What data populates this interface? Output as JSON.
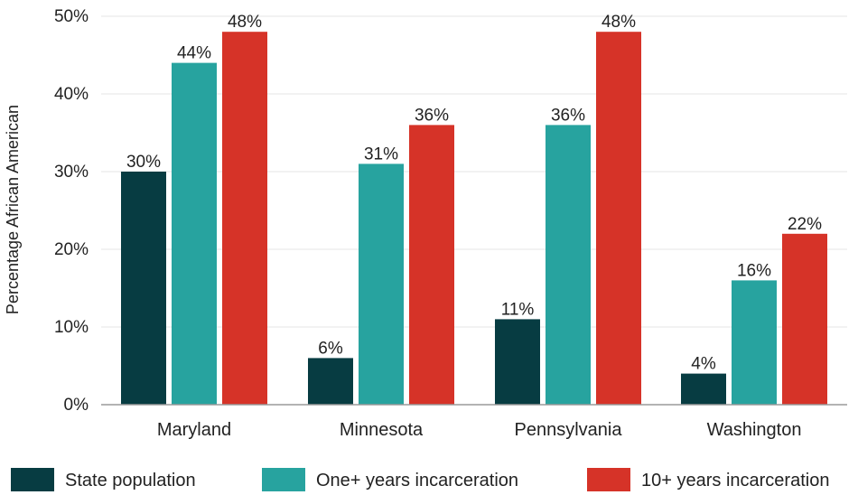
{
  "chart_data": {
    "type": "bar",
    "title": "",
    "xlabel": "",
    "ylabel": "Percentage African American",
    "ylim": [
      0,
      50
    ],
    "yticks": [
      "0%",
      "10%",
      "20%",
      "30%",
      "40%",
      "50%"
    ],
    "categories": [
      "Maryland",
      "Minnesota",
      "Pennsylvania",
      "Washington"
    ],
    "series": [
      {
        "name": "State population",
        "color": "#073c42",
        "values": [
          30,
          6,
          11,
          4
        ],
        "labels": [
          "30%",
          "6%",
          "11%",
          "4%"
        ]
      },
      {
        "name": "One+ years incarceration",
        "color": "#27a39f",
        "values": [
          44,
          31,
          36,
          16
        ],
        "labels": [
          "44%",
          "31%",
          "36%",
          "16%"
        ]
      },
      {
        "name": "10+ years incarceration",
        "color": "#d63328",
        "values": [
          48,
          36,
          48,
          22
        ],
        "labels": [
          "48%",
          "36%",
          "48%",
          "22%"
        ]
      }
    ],
    "legend_position": "bottom",
    "grid": true
  }
}
